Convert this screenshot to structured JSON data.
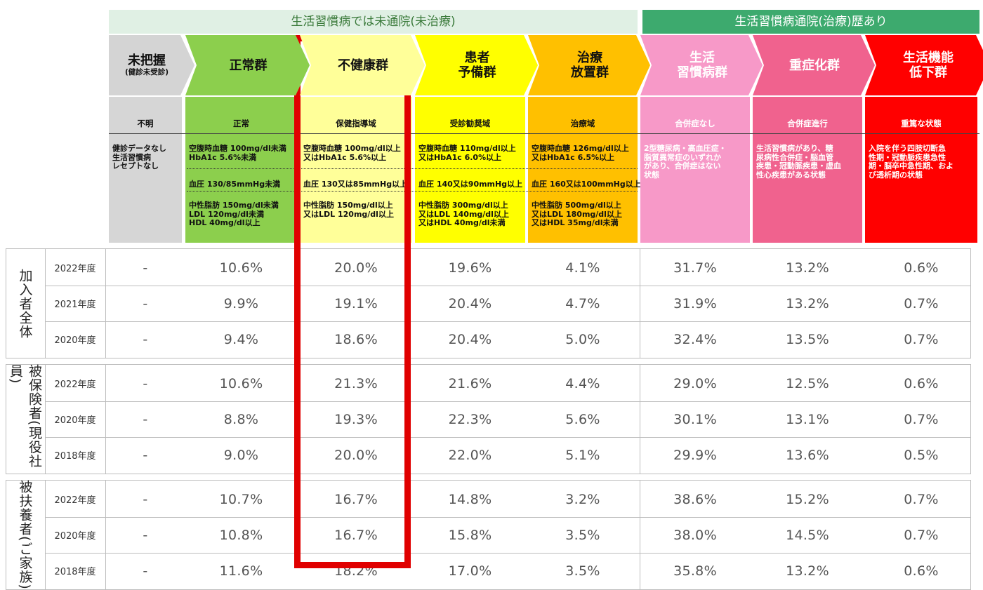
{
  "groups": {
    "untreated": "生活習慣病では未通院(未治療)",
    "treated": "生活習慣病通院(治療)歴あり"
  },
  "categories": [
    {
      "name": "未把握",
      "sub": "(健診未受診)",
      "level": "不明",
      "criteria": [
        "健診データなし\n生活習慣病\nレセプトなし"
      ]
    },
    {
      "name": "正常群",
      "sub": "",
      "level": "正常",
      "criteria": [
        "空腹時血糖 100mg/dl未満\nHbA1c 5.6%未満",
        "血圧 130/85mmHg未満",
        "中性脂肪 150mg/dl未満\nLDL 120mg/dl未満\nHDL 40mg/dl以上"
      ]
    },
    {
      "name": "不健康群",
      "sub": "",
      "level": "保健指導域",
      "criteria": [
        "空腹時血糖 100mg/dl以上\n又はHbA1c 5.6%以上",
        "血圧 130又は85mmHg以上",
        "中性脂肪 150mg/dl以上\n又はLDL 120mg/dl以上"
      ]
    },
    {
      "name": "患者\n予備群",
      "sub": "",
      "level": "受診勧奨域",
      "criteria": [
        "空腹時血糖 110mg/dl以上\n又はHbA1c 6.0%以上",
        "血圧 140又は90mmHg以上",
        "中性脂肪 300mg/dl以上\n又はLDL 140mg/dl以上\n又はHDL 40mg/dl未満"
      ]
    },
    {
      "name": "治療\n放置群",
      "sub": "",
      "level": "治療域",
      "criteria": [
        "空腹時血糖 126mg/dl以上\n又はHbA1c 6.5%以上",
        "血圧 160又は100mmHg以上",
        "中性脂肪 500mg/dl以上\n又はLDL 180mg/dl以上\n又はHDL 35mg/dl未満"
      ]
    },
    {
      "name": "生活\n習慣病群",
      "sub": "",
      "level": "合併症なし",
      "criteria": [
        "2型糖尿病・高血圧症・\n脂質異常症のいずれか\nがあり、合併症はない\n状態"
      ]
    },
    {
      "name": "重症化群",
      "sub": "",
      "level": "合併症進行",
      "criteria": [
        "生活習慣病があり、糖\n尿病性合併症・脳血管\n疾患・冠動脈疾患・虚血\n性心疾患がある状態"
      ]
    },
    {
      "name": "生活機能\n低下群",
      "sub": "",
      "level": "重篤な状態",
      "criteria": [
        "入院を伴う四肢切断急\n性期・冠動脈疾患急性\n期・脳卒中急性期、およ\nび透析期の状態"
      ]
    }
  ],
  "table": [
    {
      "group": "加入者全体",
      "rows": [
        {
          "year": "2022年度",
          "values": [
            "-",
            "10.6%",
            "20.0%",
            "19.6%",
            "4.1%",
            "31.7%",
            "13.2%",
            "0.6%"
          ]
        },
        {
          "year": "2021年度",
          "values": [
            "-",
            "9.9%",
            "19.1%",
            "20.4%",
            "4.7%",
            "31.9%",
            "13.2%",
            "0.7%"
          ]
        },
        {
          "year": "2020年度",
          "values": [
            "-",
            "9.4%",
            "18.6%",
            "20.4%",
            "5.0%",
            "32.4%",
            "13.5%",
            "0.7%"
          ]
        }
      ]
    },
    {
      "group": "被保険者(現役社員)",
      "rows": [
        {
          "year": "2022年度",
          "values": [
            "-",
            "10.6%",
            "21.3%",
            "21.6%",
            "4.4%",
            "29.0%",
            "12.5%",
            "0.6%"
          ]
        },
        {
          "year": "2020年度",
          "values": [
            "-",
            "8.8%",
            "19.3%",
            "22.3%",
            "5.6%",
            "30.1%",
            "13.1%",
            "0.7%"
          ]
        },
        {
          "year": "2018年度",
          "values": [
            "-",
            "9.0%",
            "20.0%",
            "22.0%",
            "5.1%",
            "29.9%",
            "13.6%",
            "0.5%"
          ]
        }
      ]
    },
    {
      "group": "被扶養者(ご家族)",
      "rows": [
        {
          "year": "2022年度",
          "values": [
            "-",
            "10.7%",
            "16.7%",
            "14.8%",
            "3.2%",
            "38.6%",
            "15.2%",
            "0.7%"
          ]
        },
        {
          "year": "2020年度",
          "values": [
            "-",
            "10.8%",
            "16.7%",
            "15.8%",
            "3.5%",
            "38.0%",
            "14.5%",
            "0.7%"
          ]
        },
        {
          "year": "2018年度",
          "values": [
            "-",
            "11.6%",
            "18.2%",
            "17.0%",
            "3.5%",
            "35.8%",
            "13.2%",
            "0.6%"
          ]
        }
      ]
    }
  ],
  "colors": {
    "unknown": "#d6d6d6",
    "normal": "#8ccf4d",
    "unhealthy": "#ffff99",
    "preliminary": "#ffff00",
    "untreated": "#ffc000",
    "lifestyle": "#f799c8",
    "severe": "#f0628e",
    "decline": "#ff0000",
    "highlight": "#e00000"
  }
}
